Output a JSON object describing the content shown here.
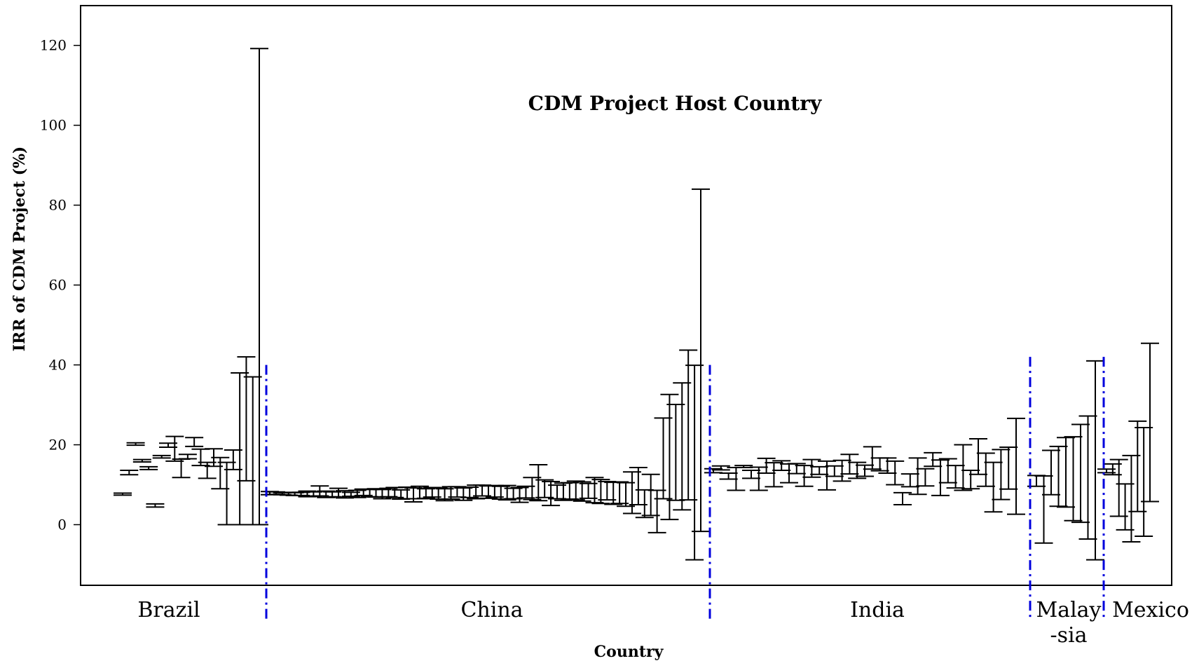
{
  "chart_data": {
    "type": "errorbar",
    "title": "CDM Project Host Country",
    "xlabel": "Country",
    "ylabel": "IRR of CDM Project (%)",
    "ylim": [
      -15,
      130
    ],
    "yticks": [
      0,
      20,
      40,
      60,
      80,
      100,
      120
    ],
    "grid": false,
    "groups": [
      {
        "label": "Brazil",
        "label_lines": [
          "Brazil"
        ],
        "intervals": [
          [
            7.4,
            7.9
          ],
          [
            12.5,
            13.6
          ],
          [
            19.9,
            20.5
          ],
          [
            15.7,
            16.3
          ],
          [
            13.8,
            14.5
          ],
          [
            4.4,
            5.2
          ],
          [
            16.7,
            17.3
          ],
          [
            19.4,
            20.4
          ],
          [
            15.9,
            22.1
          ],
          [
            11.8,
            16.4
          ],
          [
            16.5,
            17.6
          ],
          [
            19.6,
            21.8
          ],
          [
            14.8,
            18.9
          ],
          [
            11.6,
            15.6
          ],
          [
            14.6,
            19.0
          ],
          [
            9.0,
            16.8
          ],
          [
            0.0,
            15.6
          ],
          [
            13.8,
            18.7
          ],
          [
            0.0,
            38.0
          ],
          [
            11.0,
            42.0
          ],
          [
            0.0,
            37.0
          ],
          [
            0.0,
            119.2
          ]
        ]
      },
      {
        "label": "China",
        "label_lines": [
          "China"
        ],
        "intervals": [
          [
            7.5,
            8.3
          ],
          [
            7.6,
            8.2
          ],
          [
            7.5,
            8.0
          ],
          [
            7.4,
            8.1
          ],
          [
            7.3,
            8.0
          ],
          [
            7.3,
            8.1
          ],
          [
            7.0,
            8.4
          ],
          [
            7.1,
            8.2
          ],
          [
            7.2,
            9.7
          ],
          [
            6.8,
            8.4
          ],
          [
            7.0,
            8.2
          ],
          [
            6.9,
            9.1
          ],
          [
            6.7,
            8.5
          ],
          [
            7.1,
            8.1
          ],
          [
            6.8,
            8.6
          ],
          [
            7.3,
            8.9
          ],
          [
            7.0,
            8.8
          ],
          [
            6.9,
            9.0
          ],
          [
            6.5,
            8.8
          ],
          [
            7.0,
            9.1
          ],
          [
            6.8,
            9.3
          ],
          [
            6.4,
            8.7
          ],
          [
            6.5,
            9.4
          ],
          [
            5.7,
            9.2
          ],
          [
            6.5,
            9.6
          ],
          [
            6.6,
            9.0
          ],
          [
            6.9,
            9.3
          ],
          [
            6.4,
            9.2
          ],
          [
            6.0,
            9.0
          ],
          [
            6.4,
            9.5
          ],
          [
            6.9,
            9.5
          ],
          [
            6.1,
            9.2
          ],
          [
            6.8,
            9.4
          ],
          [
            6.5,
            9.9
          ],
          [
            7.2,
            9.9
          ],
          [
            6.6,
            9.7
          ],
          [
            6.9,
            9.8
          ],
          [
            6.4,
            9.6
          ],
          [
            6.2,
            9.8
          ],
          [
            6.5,
            9.1
          ],
          [
            5.6,
            9.3
          ],
          [
            6.7,
            9.6
          ],
          [
            6.3,
            11.8
          ],
          [
            6.0,
            15.0
          ],
          [
            6.8,
            11.2
          ],
          [
            4.8,
            10.8
          ],
          [
            6.5,
            9.9
          ],
          [
            6.1,
            10.4
          ],
          [
            6.4,
            10.5
          ],
          [
            6.2,
            10.9
          ],
          [
            5.9,
            10.7
          ],
          [
            6.6,
            10.3
          ],
          [
            5.5,
            11.8
          ],
          [
            5.3,
            11.3
          ],
          [
            6.2,
            10.8
          ],
          [
            5.1,
            10.6
          ],
          [
            5.3,
            10.7
          ],
          [
            4.6,
            10.5
          ],
          [
            2.8,
            13.2
          ],
          [
            5.0,
            14.3
          ],
          [
            1.8,
            8.7
          ],
          [
            2.3,
            12.6
          ],
          [
            -2.0,
            8.6
          ],
          [
            6.5,
            26.7
          ],
          [
            1.3,
            32.6
          ],
          [
            6.1,
            30.1
          ],
          [
            3.7,
            35.5
          ],
          [
            6.2,
            43.7
          ],
          [
            -8.8,
            39.9
          ],
          [
            -1.7,
            84.0
          ]
        ]
      },
      {
        "label": "India",
        "label_lines": [
          "India"
        ],
        "intervals": [
          [
            13.0,
            14.0
          ],
          [
            13.7,
            14.7
          ],
          [
            11.4,
            12.9
          ],
          [
            8.6,
            14.3
          ],
          [
            14.3,
            14.8
          ],
          [
            11.6,
            13.6
          ],
          [
            8.6,
            14.4
          ],
          [
            12.9,
            16.6
          ],
          [
            9.5,
            15.5
          ],
          [
            13.6,
            16.0
          ],
          [
            10.5,
            15.2
          ],
          [
            12.8,
            15.3
          ],
          [
            9.6,
            14.8
          ],
          [
            11.9,
            16.3
          ],
          [
            12.6,
            14.5
          ],
          [
            8.7,
            15.9
          ],
          [
            12.1,
            14.7
          ],
          [
            10.9,
            16.1
          ],
          [
            12.7,
            17.6
          ],
          [
            11.6,
            15.6
          ],
          [
            12.1,
            14.9
          ],
          [
            13.9,
            19.5
          ],
          [
            13.5,
            16.7
          ],
          [
            12.9,
            16.7
          ],
          [
            10.0,
            15.9
          ],
          [
            5.0,
            8.0
          ],
          [
            9.5,
            12.7
          ],
          [
            7.6,
            16.7
          ],
          [
            9.7,
            14.0
          ],
          [
            14.6,
            18.0
          ],
          [
            7.3,
            16.2
          ],
          [
            10.5,
            16.5
          ],
          [
            9.2,
            14.8
          ],
          [
            8.6,
            20.0
          ],
          [
            9.0,
            13.6
          ],
          [
            12.6,
            21.5
          ],
          [
            9.6,
            17.9
          ],
          [
            3.2,
            15.6
          ],
          [
            6.3,
            18.8
          ],
          [
            8.9,
            19.4
          ],
          [
            2.6,
            26.6
          ]
        ]
      },
      {
        "label": "Malay-sia",
        "label_lines": [
          "Malay",
          "-sia"
        ],
        "intervals": [
          [
            9.6,
            12.3
          ],
          [
            -4.6,
            12.2
          ],
          [
            7.5,
            18.6
          ],
          [
            4.6,
            19.6
          ],
          [
            4.4,
            21.8
          ],
          [
            1.0,
            22.0
          ],
          [
            0.6,
            25.1
          ],
          [
            -3.6,
            27.2
          ],
          [
            -8.8,
            41.0
          ]
        ]
      },
      {
        "label": "Mexico",
        "label_lines": [
          "Mexico"
        ],
        "intervals": [
          [
            13.0,
            13.9
          ],
          [
            12.5,
            15.2
          ],
          [
            2.1,
            16.3
          ],
          [
            -1.3,
            10.2
          ],
          [
            -4.3,
            17.3
          ],
          [
            3.3,
            25.9
          ],
          [
            -2.9,
            24.3
          ],
          [
            5.8,
            45.4
          ]
        ]
      }
    ]
  }
}
